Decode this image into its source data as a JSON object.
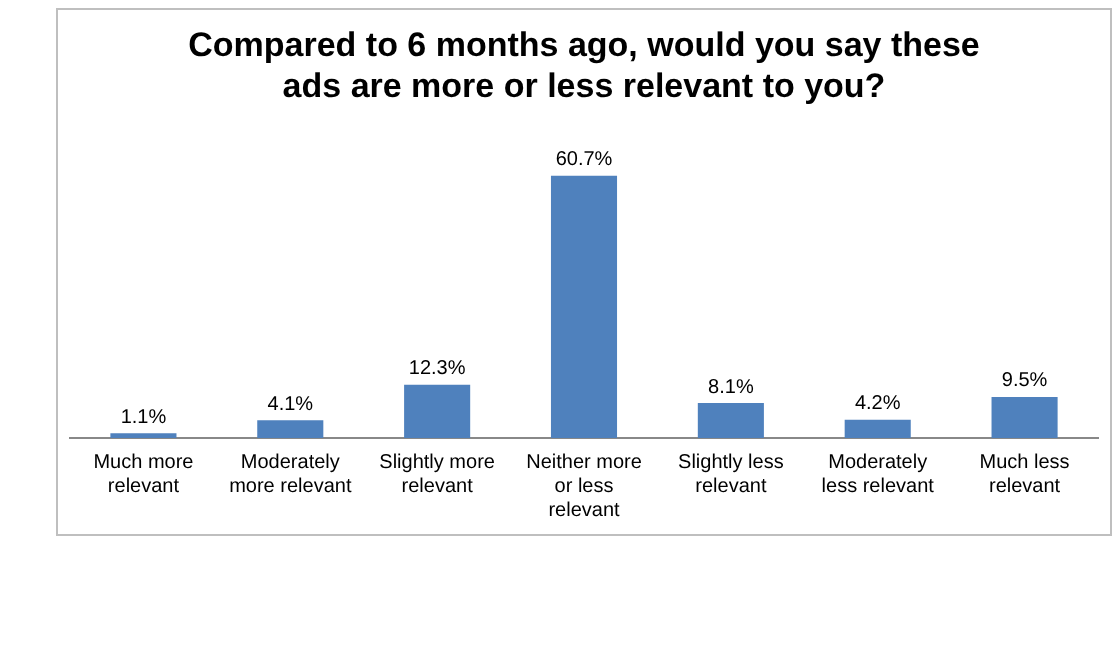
{
  "chart_data": {
    "type": "bar",
    "title": "Compared to 6 months ago, would you say these ads are more or less relevant to you?",
    "categories": [
      "Much more relevant",
      "Moderately more relevant",
      "Slightly more relevant",
      "Neither more or less relevant",
      "Slightly less relevant",
      "Moderately less relevant",
      "Much less relevant"
    ],
    "values": [
      1.1,
      4.1,
      12.3,
      60.7,
      8.1,
      4.2,
      9.5
    ],
    "value_labels": [
      "1.1%",
      "4.1%",
      "12.3%",
      "60.7%",
      "8.1%",
      "4.2%",
      "9.5%"
    ],
    "color": "#4f81bd",
    "grid": false,
    "legend": false
  }
}
